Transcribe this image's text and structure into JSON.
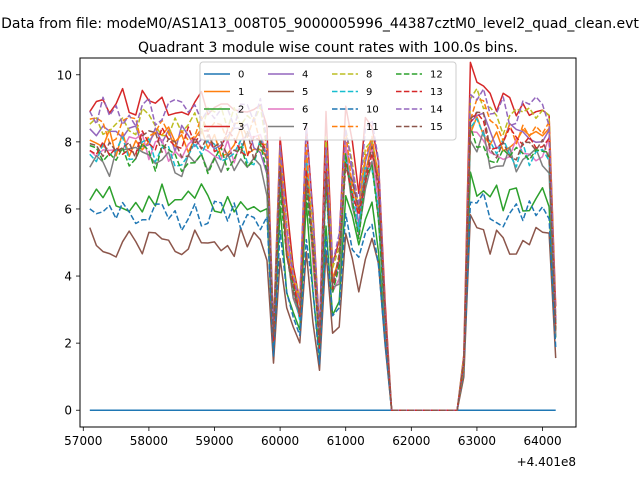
{
  "figure": {
    "suptitle": "Data from file: modeM0/AS1A13_008T05_9000005996_44387cztM0_level2_quad_clean.evt",
    "title": "Quadrant 3 module wise count rates with 100.0s bins.",
    "x_offset_label": "+4.401e8"
  },
  "chart_data": {
    "type": "line",
    "title": "Quadrant 3 module wise count rates with 100.0s bins.",
    "xlabel": "",
    "ylabel": "",
    "x_offset": 440100000,
    "xlim": [
      56950,
      64510
    ],
    "ylim": [
      -0.5,
      10.5
    ],
    "xticks": [
      57000,
      58000,
      59000,
      60000,
      61000,
      62000,
      63000,
      64000
    ],
    "yticks": [
      0,
      2,
      4,
      6,
      8,
      10
    ],
    "grid": false,
    "legend": {
      "location": "top-center",
      "columns": 4
    },
    "x": [
      57100,
      57200,
      57300,
      57400,
      57500,
      57600,
      57700,
      57800,
      57900,
      58000,
      58100,
      58200,
      58300,
      58400,
      58500,
      58600,
      58700,
      58800,
      58900,
      59000,
      59100,
      59200,
      59300,
      59400,
      59500,
      59600,
      59700,
      59800,
      59900,
      60000,
      60100,
      60200,
      60300,
      60400,
      60500,
      60600,
      60700,
      60800,
      60900,
      61000,
      61100,
      61200,
      61300,
      61400,
      61500,
      61600,
      61700,
      61800,
      61900,
      62000,
      62100,
      62200,
      62300,
      62400,
      62500,
      62600,
      62700,
      62800,
      62900,
      63000,
      63100,
      63200,
      63300,
      63400,
      63500,
      63600,
      63700,
      63800,
      63900,
      64000,
      64100,
      64200
    ],
    "series": [
      {
        "name": "0",
        "color": "#1f77b4",
        "dash": "solid",
        "base": 0,
        "zero": true
      },
      {
        "name": "1",
        "color": "#ff7f0e",
        "dash": "solid",
        "base": 8.0,
        "seed": 3
      },
      {
        "name": "2",
        "color": "#2ca02c",
        "dash": "solid",
        "base": 6.3,
        "seed": 5
      },
      {
        "name": "3",
        "color": "#d62728",
        "dash": "solid",
        "base": 9.2,
        "seed": 7
      },
      {
        "name": "4",
        "color": "#9467bd",
        "dash": "solid",
        "base": 8.1,
        "seed": 11
      },
      {
        "name": "5",
        "color": "#8c564b",
        "dash": "solid",
        "base": 5.0,
        "seed": 13
      },
      {
        "name": "6",
        "color": "#e377c2",
        "dash": "solid",
        "base": 7.8,
        "seed": 17
      },
      {
        "name": "7",
        "color": "#7f7f7f",
        "dash": "solid",
        "base": 7.4,
        "seed": 19
      },
      {
        "name": "8",
        "color": "#bcbd22",
        "dash": "dashed",
        "base": 8.6,
        "seed": 23
      },
      {
        "name": "9",
        "color": "#17becf",
        "dash": "dashed",
        "base": 7.7,
        "seed": 29
      },
      {
        "name": "10",
        "color": "#1f77b4",
        "dash": "dashed",
        "base": 5.8,
        "seed": 31
      },
      {
        "name": "11",
        "color": "#ff7f0e",
        "dash": "dashed",
        "base": 8.3,
        "seed": 37
      },
      {
        "name": "12",
        "color": "#2ca02c",
        "dash": "dashed",
        "base": 7.5,
        "seed": 41
      },
      {
        "name": "13",
        "color": "#d62728",
        "dash": "dashed",
        "base": 8.0,
        "seed": 43
      },
      {
        "name": "14",
        "color": "#9467bd",
        "dash": "dashed",
        "base": 8.9,
        "seed": 47
      },
      {
        "name": "15",
        "color": "#8c564b",
        "dash": "dashed",
        "base": 7.9,
        "seed": 53
      }
    ]
  }
}
